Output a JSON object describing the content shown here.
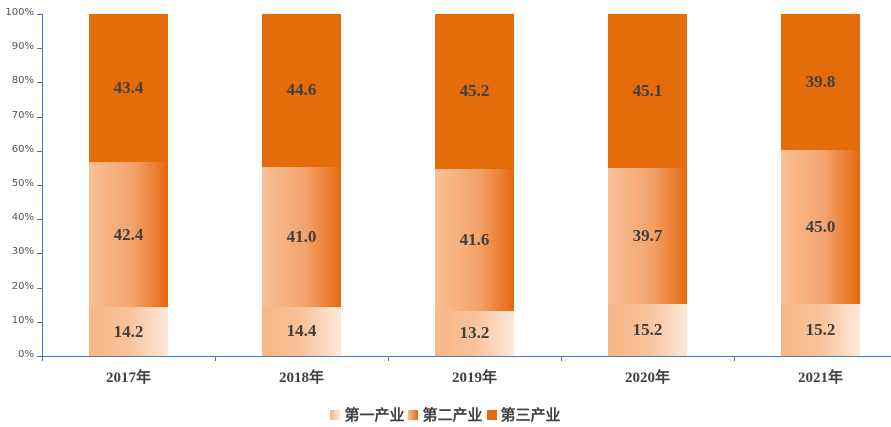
{
  "chart_data": {
    "type": "bar",
    "stacked": true,
    "percent_stacked": true,
    "title": "",
    "xlabel": "",
    "ylabel": "",
    "ylim": [
      0,
      100
    ],
    "yticks": [
      "0%",
      "10%",
      "20%",
      "30%",
      "40%",
      "50%",
      "60%",
      "70%",
      "80%",
      "90%",
      "100%"
    ],
    "categories": [
      "2017年",
      "2018年",
      "2019年",
      "2020年",
      "2021年"
    ],
    "series": [
      {
        "name": "第一产业",
        "values": [
          14.2,
          14.4,
          13.2,
          15.2,
          15.2
        ],
        "color": "#f8c29a"
      },
      {
        "name": "第二产业",
        "values": [
          42.4,
          41.0,
          41.6,
          39.7,
          45.0
        ],
        "color": "#f3a36c"
      },
      {
        "name": "第三产业",
        "values": [
          43.4,
          44.6,
          45.2,
          45.1,
          39.8
        ],
        "color": "#e46c0a"
      }
    ],
    "legend_position": "bottom",
    "grid": false
  },
  "legend": {
    "items": [
      "第一产业",
      "第二产业",
      "第三产业"
    ]
  }
}
